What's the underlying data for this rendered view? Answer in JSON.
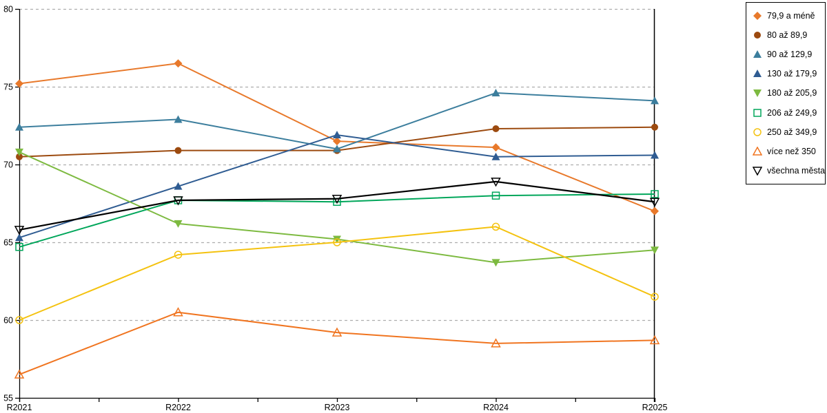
{
  "chart_data": {
    "type": "line",
    "title": "",
    "xlabel": "",
    "ylabel": "",
    "categories": [
      "R2021",
      "R2022",
      "R2023",
      "R2024",
      "R2025"
    ],
    "y_ticks": [
      55,
      60,
      65,
      70,
      75,
      80
    ],
    "ylim": [
      55,
      80
    ],
    "grid": "horizontal-dashed",
    "legend_position": "right",
    "series": [
      {
        "name": "79,9 a méně",
        "color": "#E8792B",
        "marker": "diamond",
        "marker_style": "filled",
        "line_width": 2,
        "values": [
          75.2,
          76.5,
          71.5,
          71.1,
          67.0
        ]
      },
      {
        "name": "80 až 89,9",
        "color": "#9C4A0F",
        "marker": "circle",
        "marker_style": "filled",
        "line_width": 2,
        "values": [
          70.5,
          70.9,
          70.9,
          72.3,
          72.4
        ]
      },
      {
        "name": "90 až 129,9",
        "color": "#3C7E9D",
        "marker": "triangle-up",
        "marker_style": "filled",
        "line_width": 2,
        "values": [
          72.4,
          72.9,
          71.0,
          74.6,
          74.1
        ]
      },
      {
        "name": "130 až 179,9",
        "color": "#2F5C92",
        "marker": "triangle-up",
        "marker_style": "filled",
        "line_width": 2,
        "values": [
          65.3,
          68.6,
          71.9,
          70.5,
          70.6
        ]
      },
      {
        "name": "180 až 205,9",
        "color": "#7DBA40",
        "marker": "triangle-down",
        "marker_style": "filled",
        "line_width": 2,
        "values": [
          70.8,
          66.2,
          65.2,
          63.7,
          64.5
        ]
      },
      {
        "name": "206 až 249,9",
        "color": "#00A65A",
        "marker": "square",
        "marker_style": "open",
        "line_width": 2,
        "values": [
          64.7,
          67.7,
          67.6,
          68.0,
          68.1
        ]
      },
      {
        "name": "250 až 349,9",
        "color": "#F4C20F",
        "marker": "circle",
        "marker_style": "open",
        "line_width": 2,
        "values": [
          60.0,
          64.2,
          65.0,
          66.0,
          61.5
        ]
      },
      {
        "name": "více než 350",
        "color": "#F0741F",
        "marker": "triangle-up",
        "marker_style": "open",
        "line_width": 2,
        "values": [
          56.5,
          60.5,
          59.2,
          58.5,
          58.7
        ]
      },
      {
        "name": "všechna města",
        "color": "#000000",
        "marker": "triangle-down",
        "marker_style": "open",
        "line_width": 2.2,
        "values": [
          65.8,
          67.7,
          67.8,
          68.9,
          67.6
        ]
      }
    ],
    "colors": {
      "background": "#FFFFFF",
      "axis": "#000000",
      "grid": "#ADADAD",
      "text": "#000000"
    }
  }
}
